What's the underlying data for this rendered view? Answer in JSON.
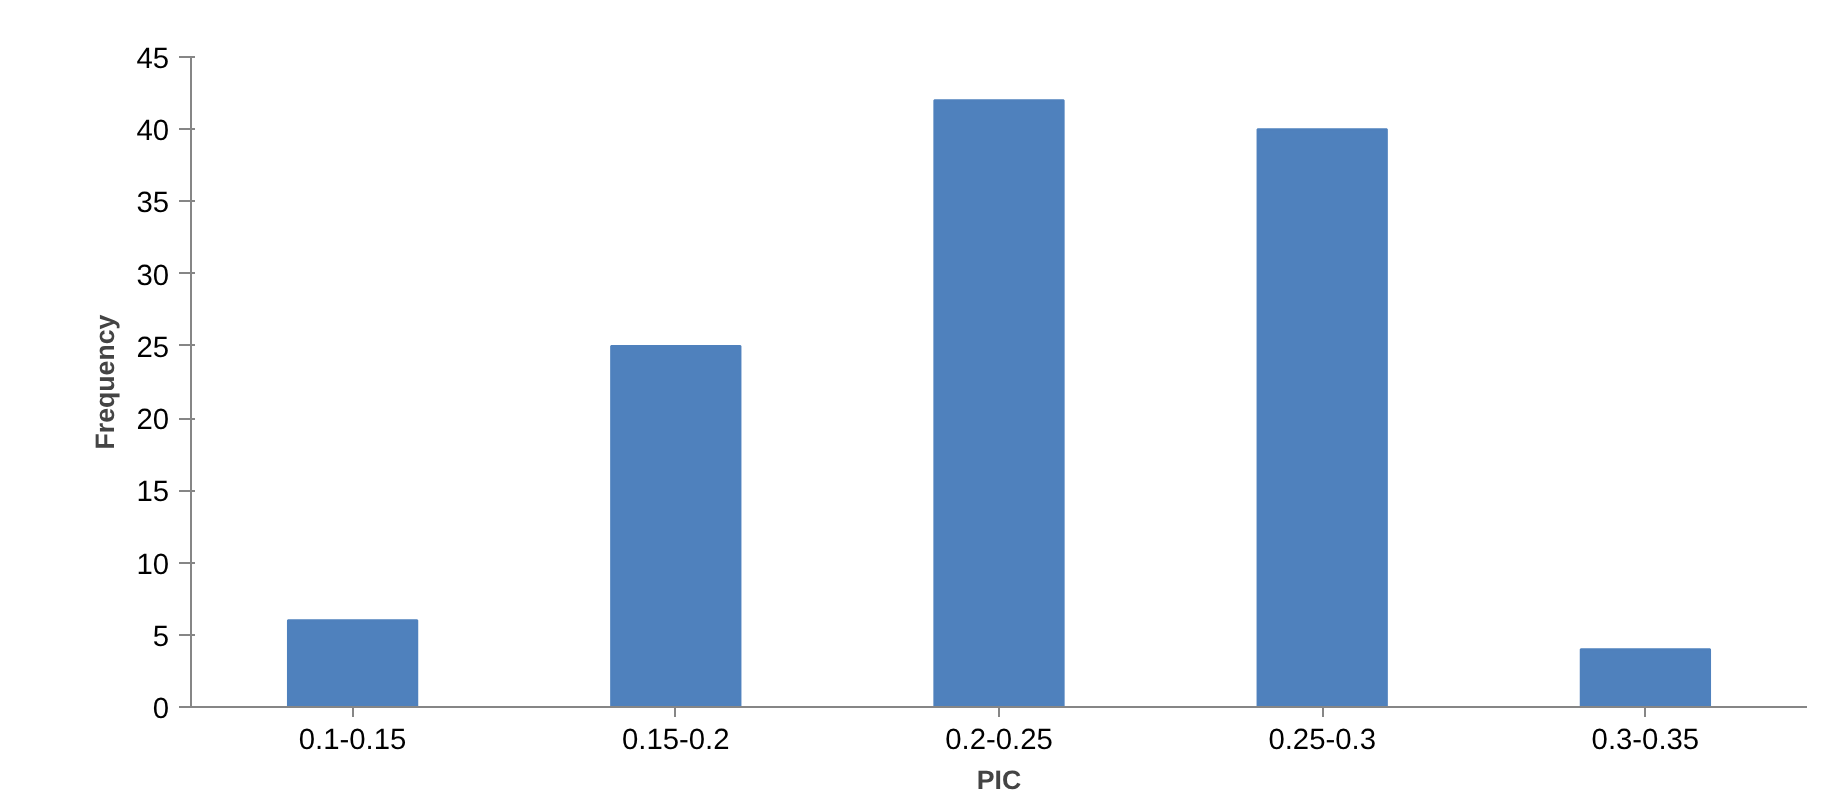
{
  "chart_data": {
    "type": "bar",
    "xlabel": "PIC",
    "ylabel": "Frequency",
    "categories": [
      "0.1-0.15",
      "0.15-0.2",
      "0.2-0.25",
      "0.25-0.3",
      "0.3-0.35"
    ],
    "values": [
      6,
      25,
      42,
      40,
      4
    ],
    "color": "#4f81bd",
    "ylim": [
      0,
      45
    ],
    "yticks": [
      0,
      5,
      10,
      15,
      20,
      25,
      30,
      35,
      40,
      45
    ],
    "grid": false
  }
}
